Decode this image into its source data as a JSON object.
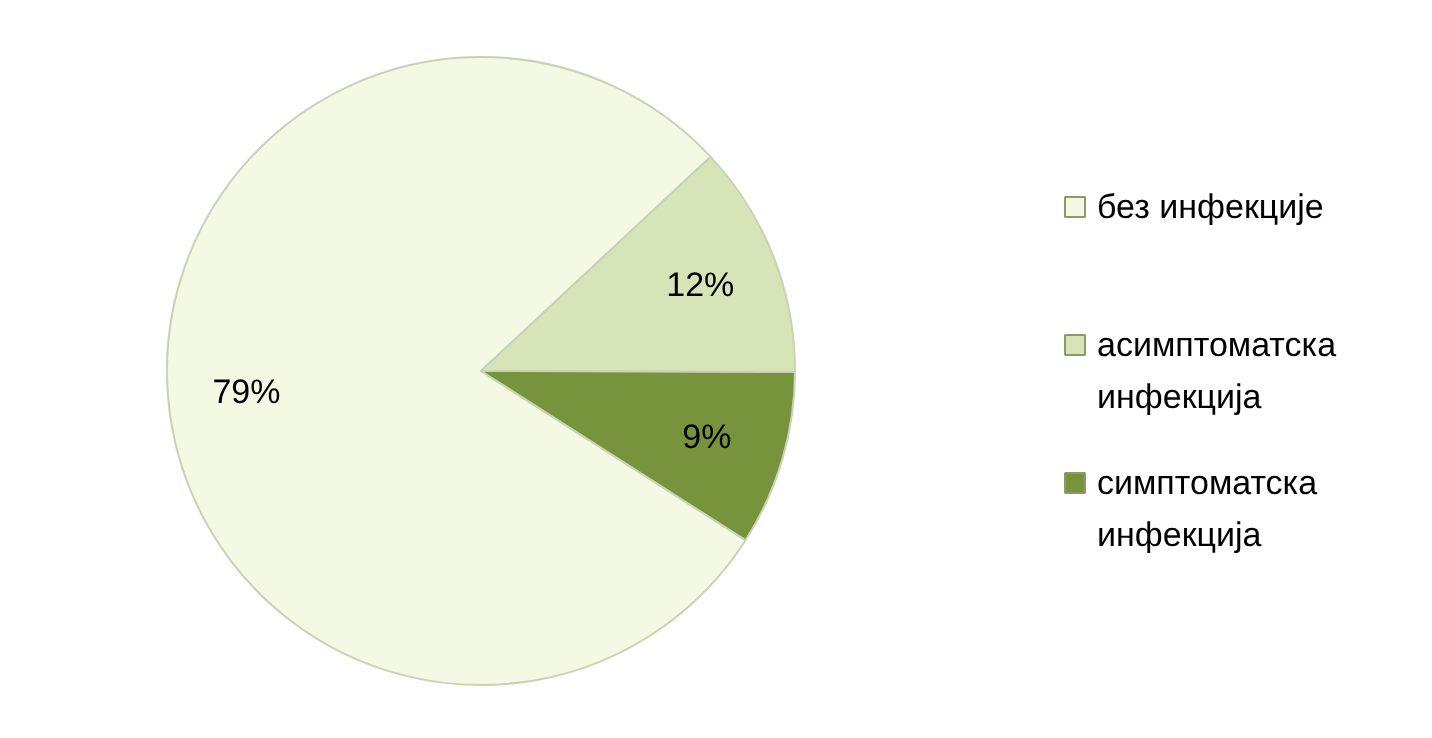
{
  "chart_data": {
    "type": "pie",
    "categories": [
      "без инфекције",
      "асимптоматска инфекција",
      "симптоматска инфекција"
    ],
    "values": [
      79,
      12,
      9
    ],
    "colors": [
      "#f4f9e4",
      "#d6e4b8",
      "#77933c"
    ],
    "value_labels": [
      "79%",
      "12%",
      "9%"
    ],
    "legend": "right"
  }
}
